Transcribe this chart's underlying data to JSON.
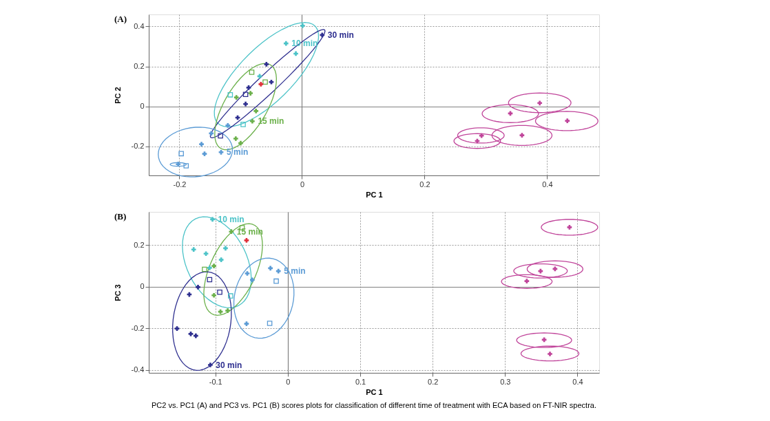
{
  "chart_data": [
    {
      "type": "scatter",
      "title": "(A)",
      "xlabel": "PC 1",
      "ylabel": "PC 2",
      "xlim": [
        -0.25,
        0.485
      ],
      "ylim": [
        -0.345,
        0.46
      ],
      "xticks": [
        -0.2,
        0,
        0.2,
        0.4
      ],
      "yticks": [
        -0.2,
        0,
        0.2,
        0.4
      ],
      "grid": true,
      "legend": false,
      "series": [
        {
          "name": "5 min",
          "marker": "cross",
          "color": "#5b9bd5",
          "x": [
            -0.132,
            -0.164,
            -0.159,
            -0.202,
            -0.148,
            -0.121
          ],
          "values": [
            -0.229,
            -0.189,
            -0.237,
            -0.289,
            -0.135,
            -0.095
          ]
        },
        {
          "marker": "square",
          "color": "#5b9bd5",
          "x": [
            -0.197,
            -0.189
          ],
          "values": [
            -0.236,
            -0.297
          ]
        },
        {
          "name": "10 min",
          "marker": "cross",
          "color": "#4cc3c8",
          "x": [
            -0.026,
            0.001,
            -0.01,
            -0.069
          ],
          "values": [
            0.315,
            0.404,
            0.264,
            0.151
          ]
        },
        {
          "marker": "square",
          "color": "#4cc3c8",
          "x": [
            -0.117,
            -0.096
          ],
          "values": [
            0.058,
            -0.09
          ]
        },
        {
          "name": "15 min",
          "marker": "cross",
          "color": "#6bb04a",
          "x": [
            -0.081,
            -0.107,
            -0.084,
            -0.075,
            -0.108,
            -0.1
          ],
          "values": [
            -0.074,
            0.045,
            0.066,
            -0.023,
            -0.161,
            -0.184
          ]
        },
        {
          "marker": "square",
          "color": "#6bb04a",
          "x": [
            -0.082,
            -0.06
          ],
          "values": [
            0.171,
            0.122
          ]
        },
        {
          "name": "30 min",
          "marker": "cross",
          "color": "#2e2f8f",
          "x": [
            0.033,
            -0.058,
            -0.05,
            -0.087,
            -0.092,
            -0.105
          ],
          "values": [
            0.357,
            0.211,
            0.122,
            0.094,
            0.012,
            -0.056
          ]
        },
        {
          "marker": "square",
          "color": "#2e2f8f",
          "x": [
            -0.092,
            -0.133
          ],
          "values": [
            0.06,
            -0.147
          ]
        },
        {
          "marker": "cross",
          "color": "#e0303a",
          "x": [
            -0.067
          ],
          "values": [
            0.111
          ]
        },
        {
          "marker": "cross",
          "color": "#c0449a",
          "x": [
            0.388,
            0.34,
            0.433,
            0.359,
            0.293,
            0.286
          ],
          "values": [
            0.017,
            -0.035,
            -0.072,
            -0.144,
            -0.146,
            -0.173
          ]
        }
      ]
    },
    {
      "type": "scatter",
      "title": "(B)",
      "xlabel": "PC 1",
      "ylabel": "PC 3",
      "xlim": [
        -0.192,
        0.43
      ],
      "ylim": [
        -0.414,
        0.36
      ],
      "xticks": [
        -0.1,
        0,
        0.1,
        0.2,
        0.3,
        0.4
      ],
      "yticks": [
        -0.4,
        -0.2,
        0,
        0.2
      ],
      "grid": true,
      "legend": false,
      "annotations": [
        "PC2 vs. PC1 (A) and PC3 vs. PC1 (B) scores plots for classification of different time of treatment with ECA based on FT-NIR spectra."
      ],
      "series": [
        {
          "name": "5 min",
          "marker": "cross",
          "color": "#5b9bd5",
          "x": [
            -0.013,
            -0.024,
            -0.056,
            -0.049,
            -0.057
          ],
          "values": [
            0.075,
            0.089,
            0.064,
            0.033,
            -0.178
          ]
        },
        {
          "marker": "square",
          "color": "#5b9bd5",
          "x": [
            -0.016,
            -0.025
          ],
          "values": [
            0.027,
            -0.176
          ]
        },
        {
          "name": "10 min",
          "marker": "cross",
          "color": "#4cc3c8",
          "x": [
            -0.104,
            -0.13,
            -0.113,
            -0.092,
            -0.086,
            -0.108
          ],
          "values": [
            0.324,
            0.179,
            0.159,
            0.13,
            0.185,
            0.091
          ]
        },
        {
          "marker": "square",
          "color": "#4cc3c8",
          "x": [
            -0.079
          ],
          "values": [
            -0.044
          ]
        },
        {
          "name": "15 min",
          "marker": "cross",
          "color": "#6bb04a",
          "x": [
            -0.078,
            -0.102,
            -0.102,
            -0.093,
            -0.083
          ],
          "values": [
            0.265,
            0.1,
            -0.041,
            -0.12,
            -0.115
          ]
        },
        {
          "marker": "square",
          "color": "#6bb04a",
          "x": [
            -0.063,
            -0.115
          ],
          "values": [
            0.284,
            0.084
          ]
        },
        {
          "name": "30 min",
          "marker": "cross",
          "color": "#2e2f8f",
          "x": [
            -0.107,
            -0.124,
            -0.136,
            -0.153,
            -0.134,
            -0.127
          ],
          "values": [
            -0.376,
            -0.002,
            -0.037,
            -0.201,
            -0.227,
            -0.236
          ]
        },
        {
          "marker": "square",
          "color": "#2e2f8f",
          "x": [
            -0.108,
            -0.094
          ],
          "values": [
            0.034,
            -0.026
          ]
        },
        {
          "marker": "cross",
          "color": "#e0303a",
          "x": [
            -0.057
          ],
          "values": [
            0.223
          ]
        },
        {
          "marker": "cross",
          "color": "#c0449a",
          "x": [
            0.389,
            0.349,
            0.369,
            0.33,
            0.354,
            0.362
          ],
          "values": [
            0.286,
            0.075,
            0.086,
            0.027,
            -0.255,
            -0.323
          ]
        }
      ]
    }
  ]
}
